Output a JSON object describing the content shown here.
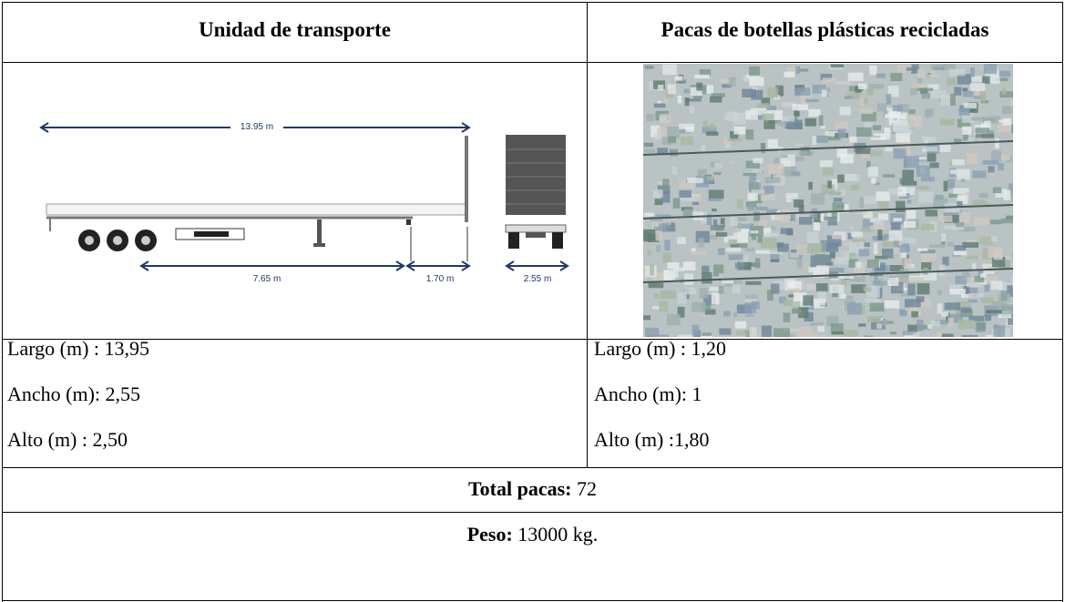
{
  "header": {
    "columns": [
      "Unidad de transporte",
      "Pacas de botellas plásticas recicladas"
    ]
  },
  "diagram": {
    "labels": [
      "13.95 m",
      "7.65 m",
      "1.70 m",
      "2.55 m"
    ]
  },
  "table": {
    "rows": [
      [
        "Largo (m) : 13,95",
        "Largo (m) : 1,20"
      ],
      [
        "Ancho (m): 2,55",
        "Ancho (m): 1"
      ],
      [
        "Alto (m) : 2,50",
        "Alto (m) :1,80"
      ]
    ]
  },
  "totals": {
    "label": "Total pacas:",
    "value": "72"
  },
  "weight": {
    "label": "Peso:",
    "value": "13000 kg."
  }
}
